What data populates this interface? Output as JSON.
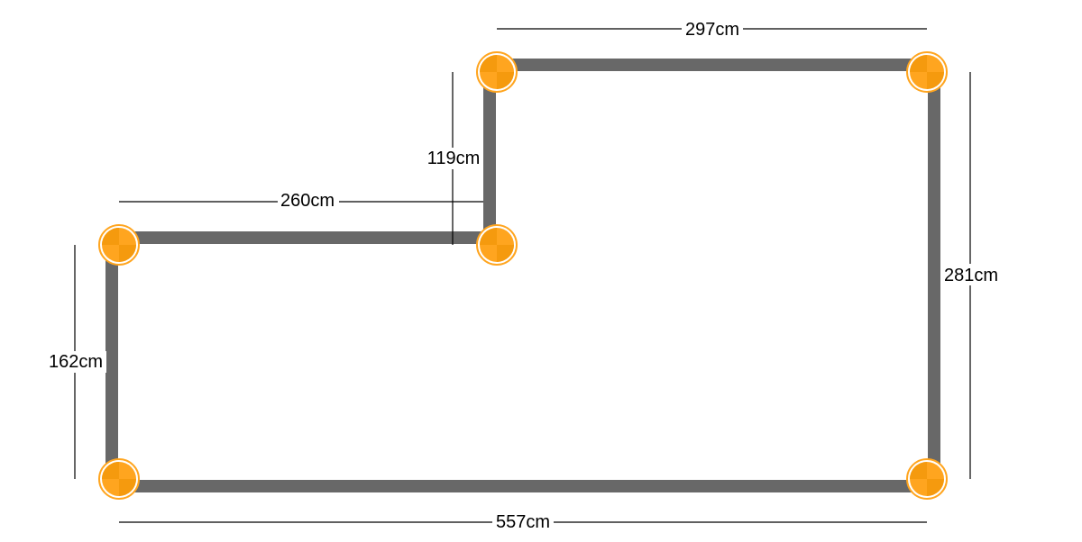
{
  "dimensions": {
    "top": "297cm",
    "step_height": "119cm",
    "step_width": "260cm",
    "right": "281cm",
    "left": "162cm",
    "bottom": "557cm"
  },
  "colors": {
    "wall": "#686868",
    "corner": "#FFA51F",
    "corner_dark": "#F59A0E",
    "dimension_line": "#000000",
    "background": "#ffffff"
  },
  "corners": [
    {
      "name": "corner-handle-top-left-upper",
      "icon": "corner-handle-icon"
    },
    {
      "name": "corner-handle-top-right",
      "icon": "corner-handle-icon"
    },
    {
      "name": "corner-handle-inner-step",
      "icon": "corner-handle-icon"
    },
    {
      "name": "corner-handle-left-upper",
      "icon": "corner-handle-icon"
    },
    {
      "name": "corner-handle-bottom-left",
      "icon": "corner-handle-icon"
    },
    {
      "name": "corner-handle-bottom-right",
      "icon": "corner-handle-icon"
    }
  ]
}
